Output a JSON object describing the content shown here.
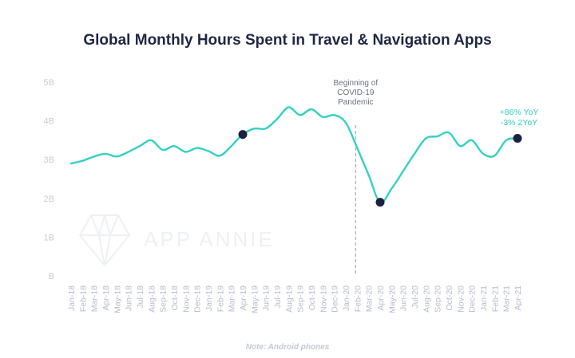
{
  "title": "Global Monthly Hours Spent in Travel & Navigation Apps",
  "footnote": "Note: Android phones",
  "watermark": "APP ANNIE",
  "colors": {
    "line": "#33d1c3",
    "marker": "#1c2340",
    "title": "#1f2744",
    "grid_text": "#c9ccd8",
    "covid_line": "#a7abb8"
  },
  "chart_data": {
    "type": "line",
    "title": "Global Monthly Hours Spent in Travel & Navigation Apps",
    "xlabel": "",
    "ylabel": "",
    "ylim": [
      0,
      5
    ],
    "y_tick_labels": [
      "B",
      "1B",
      "2B",
      "3B",
      "4B",
      "5B"
    ],
    "grid": false,
    "categories": [
      "Jan-18",
      "Feb-18",
      "Mar-18",
      "Apr-18",
      "May-18",
      "Jun-18",
      "Jul-18",
      "Aug-18",
      "Sep-18",
      "Oct-18",
      "Nov-18",
      "Dec-18",
      "Jan-19",
      "Feb-19",
      "Mar-19",
      "Apr-19",
      "May-19",
      "Jun-19",
      "Jul-19",
      "Aug-19",
      "Sep-19",
      "Oct-19",
      "Nov-19",
      "Dec-19",
      "Jan-20",
      "Feb-20",
      "Mar-20",
      "Apr-20",
      "May-20",
      "Jun-20",
      "Jul-20",
      "Aug-20",
      "Sep-20",
      "Oct-20",
      "Nov-20",
      "Dec-20",
      "Jan-21",
      "Feb-21",
      "Mar-21",
      "Apr-21"
    ],
    "series": [
      {
        "values": [
          2.9,
          2.97,
          3.08,
          3.15,
          3.08,
          3.2,
          3.35,
          3.5,
          3.25,
          3.35,
          3.2,
          3.3,
          3.22,
          3.1,
          3.35,
          3.65,
          3.8,
          3.8,
          4.05,
          4.35,
          4.15,
          4.3,
          4.1,
          4.15,
          3.95,
          3.3,
          2.6,
          1.9,
          2.25,
          2.7,
          3.15,
          3.55,
          3.6,
          3.7,
          3.35,
          3.5,
          3.15,
          3.1,
          3.5,
          3.55
        ]
      }
    ],
    "highlighted_points": [
      "Apr-19",
      "Apr-20",
      "Apr-21"
    ],
    "annotations": {
      "covid_marker": {
        "at": "Feb-20",
        "lines": [
          "Beginning of",
          "COVID-19",
          "Pandemic"
        ]
      },
      "callout": {
        "at": "Apr-21",
        "lines": [
          "+86% YoY",
          "-3% 2YoY"
        ]
      }
    }
  }
}
